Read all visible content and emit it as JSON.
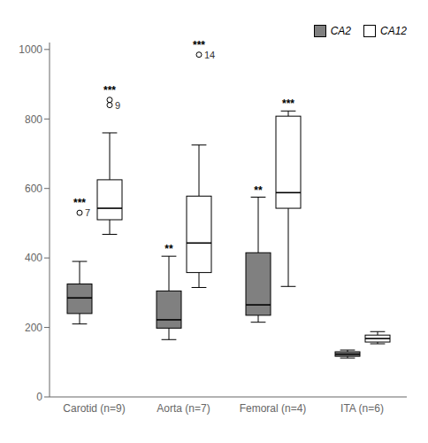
{
  "chart_data": {
    "type": "boxplot",
    "categories": [
      "Carotid (n=9)",
      "Aorta (n=7)",
      "Femoral (n=4)",
      "ITA (n=6)"
    ],
    "series": [
      {
        "name": "CA2",
        "color": "#808080",
        "values": [
          {
            "whislo": 210,
            "q1": 240,
            "med": 285,
            "q3": 325,
            "whishi": 390,
            "fliers": [
              530
            ]
          },
          {
            "whislo": 165,
            "q1": 198,
            "med": 222,
            "q3": 305,
            "whishi": 405,
            "fliers": []
          },
          {
            "whislo": 215,
            "q1": 235,
            "med": 265,
            "q3": 415,
            "whishi": 575,
            "fliers": []
          },
          {
            "whislo": 112,
            "q1": 117,
            "med": 123,
            "q3": 130,
            "whishi": 135,
            "fliers": []
          }
        ],
        "outlier_labels": [
          {
            "category": "Carotid (n=9)",
            "label": "7",
            "value": 530
          }
        ],
        "significance": [
          "***",
          "**",
          "**",
          null
        ]
      },
      {
        "name": "CA12",
        "color": "#ffffff",
        "values": [
          {
            "whislo": 468,
            "q1": 510,
            "med": 543,
            "q3": 625,
            "whishi": 760,
            "fliers": [
              840,
              855
            ]
          },
          {
            "whislo": 315,
            "q1": 358,
            "med": 443,
            "q3": 578,
            "whishi": 725,
            "fliers": [
              985
            ]
          },
          {
            "whislo": 318,
            "q1": 543,
            "med": 588,
            "q3": 808,
            "whishi": 823,
            "fliers": []
          },
          {
            "whislo": 153,
            "q1": 158,
            "med": 168,
            "q3": 178,
            "whishi": 188,
            "fliers": []
          }
        ],
        "outlier_labels": [
          {
            "category": "Carotid (n=9)",
            "label": "9",
            "value": 840
          },
          {
            "category": "Aorta (n=7)",
            "label": "14",
            "value": 985
          }
        ],
        "significance": [
          "***",
          "***",
          "***",
          null
        ]
      }
    ],
    "ylim": [
      0,
      1020
    ],
    "yticks": [
      0,
      200,
      400,
      600,
      800,
      1000
    ],
    "grid": false,
    "legend": "upper right"
  }
}
